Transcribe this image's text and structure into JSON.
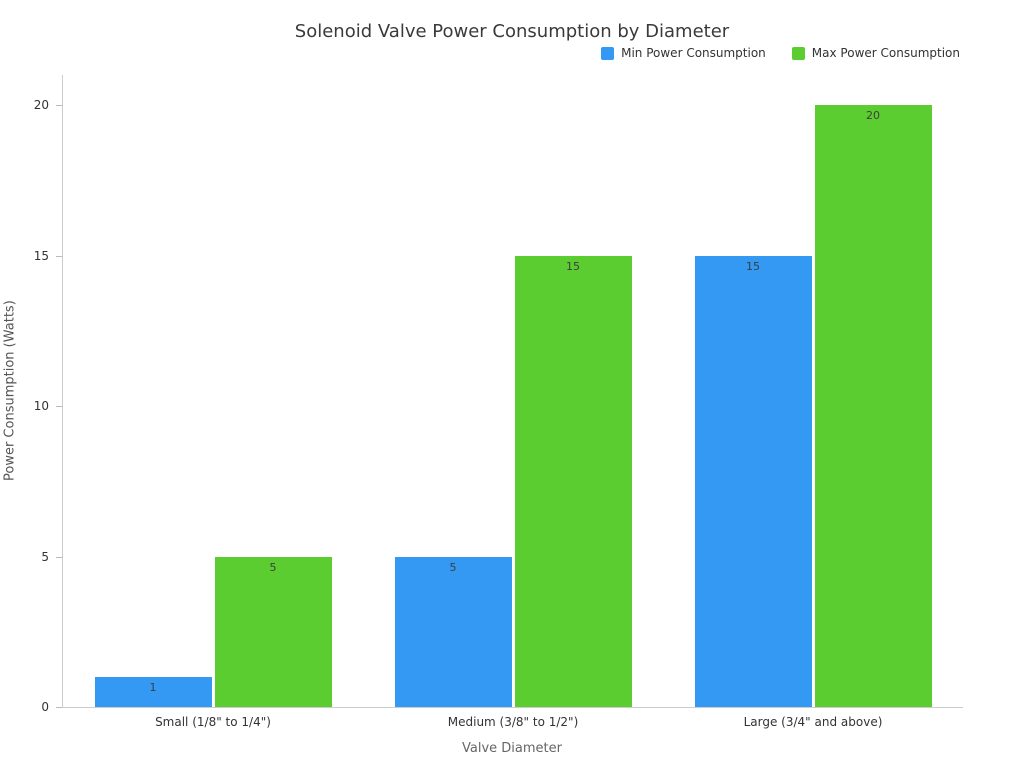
{
  "chart_data": {
    "type": "bar",
    "title": "Solenoid Valve Power Consumption by Diameter",
    "xlabel": "Valve Diameter",
    "ylabel": "Power Consumption (Watts)",
    "categories": [
      "Small (1/8\" to 1/4\")",
      "Medium (3/8\" to 1/2\")",
      "Large (3/4\" and above)"
    ],
    "series": [
      {
        "name": "Min Power Consumption",
        "color": "#3399f3",
        "values": [
          1,
          5,
          15
        ]
      },
      {
        "name": "Max Power Consumption",
        "color": "#5ccd30",
        "values": [
          5,
          15,
          20
        ]
      }
    ],
    "yticks": [
      0,
      5,
      10,
      15,
      20
    ],
    "ylim": [
      0,
      21
    ],
    "grid": false,
    "legend_position": "top-right",
    "background_color": "#ffffff"
  }
}
